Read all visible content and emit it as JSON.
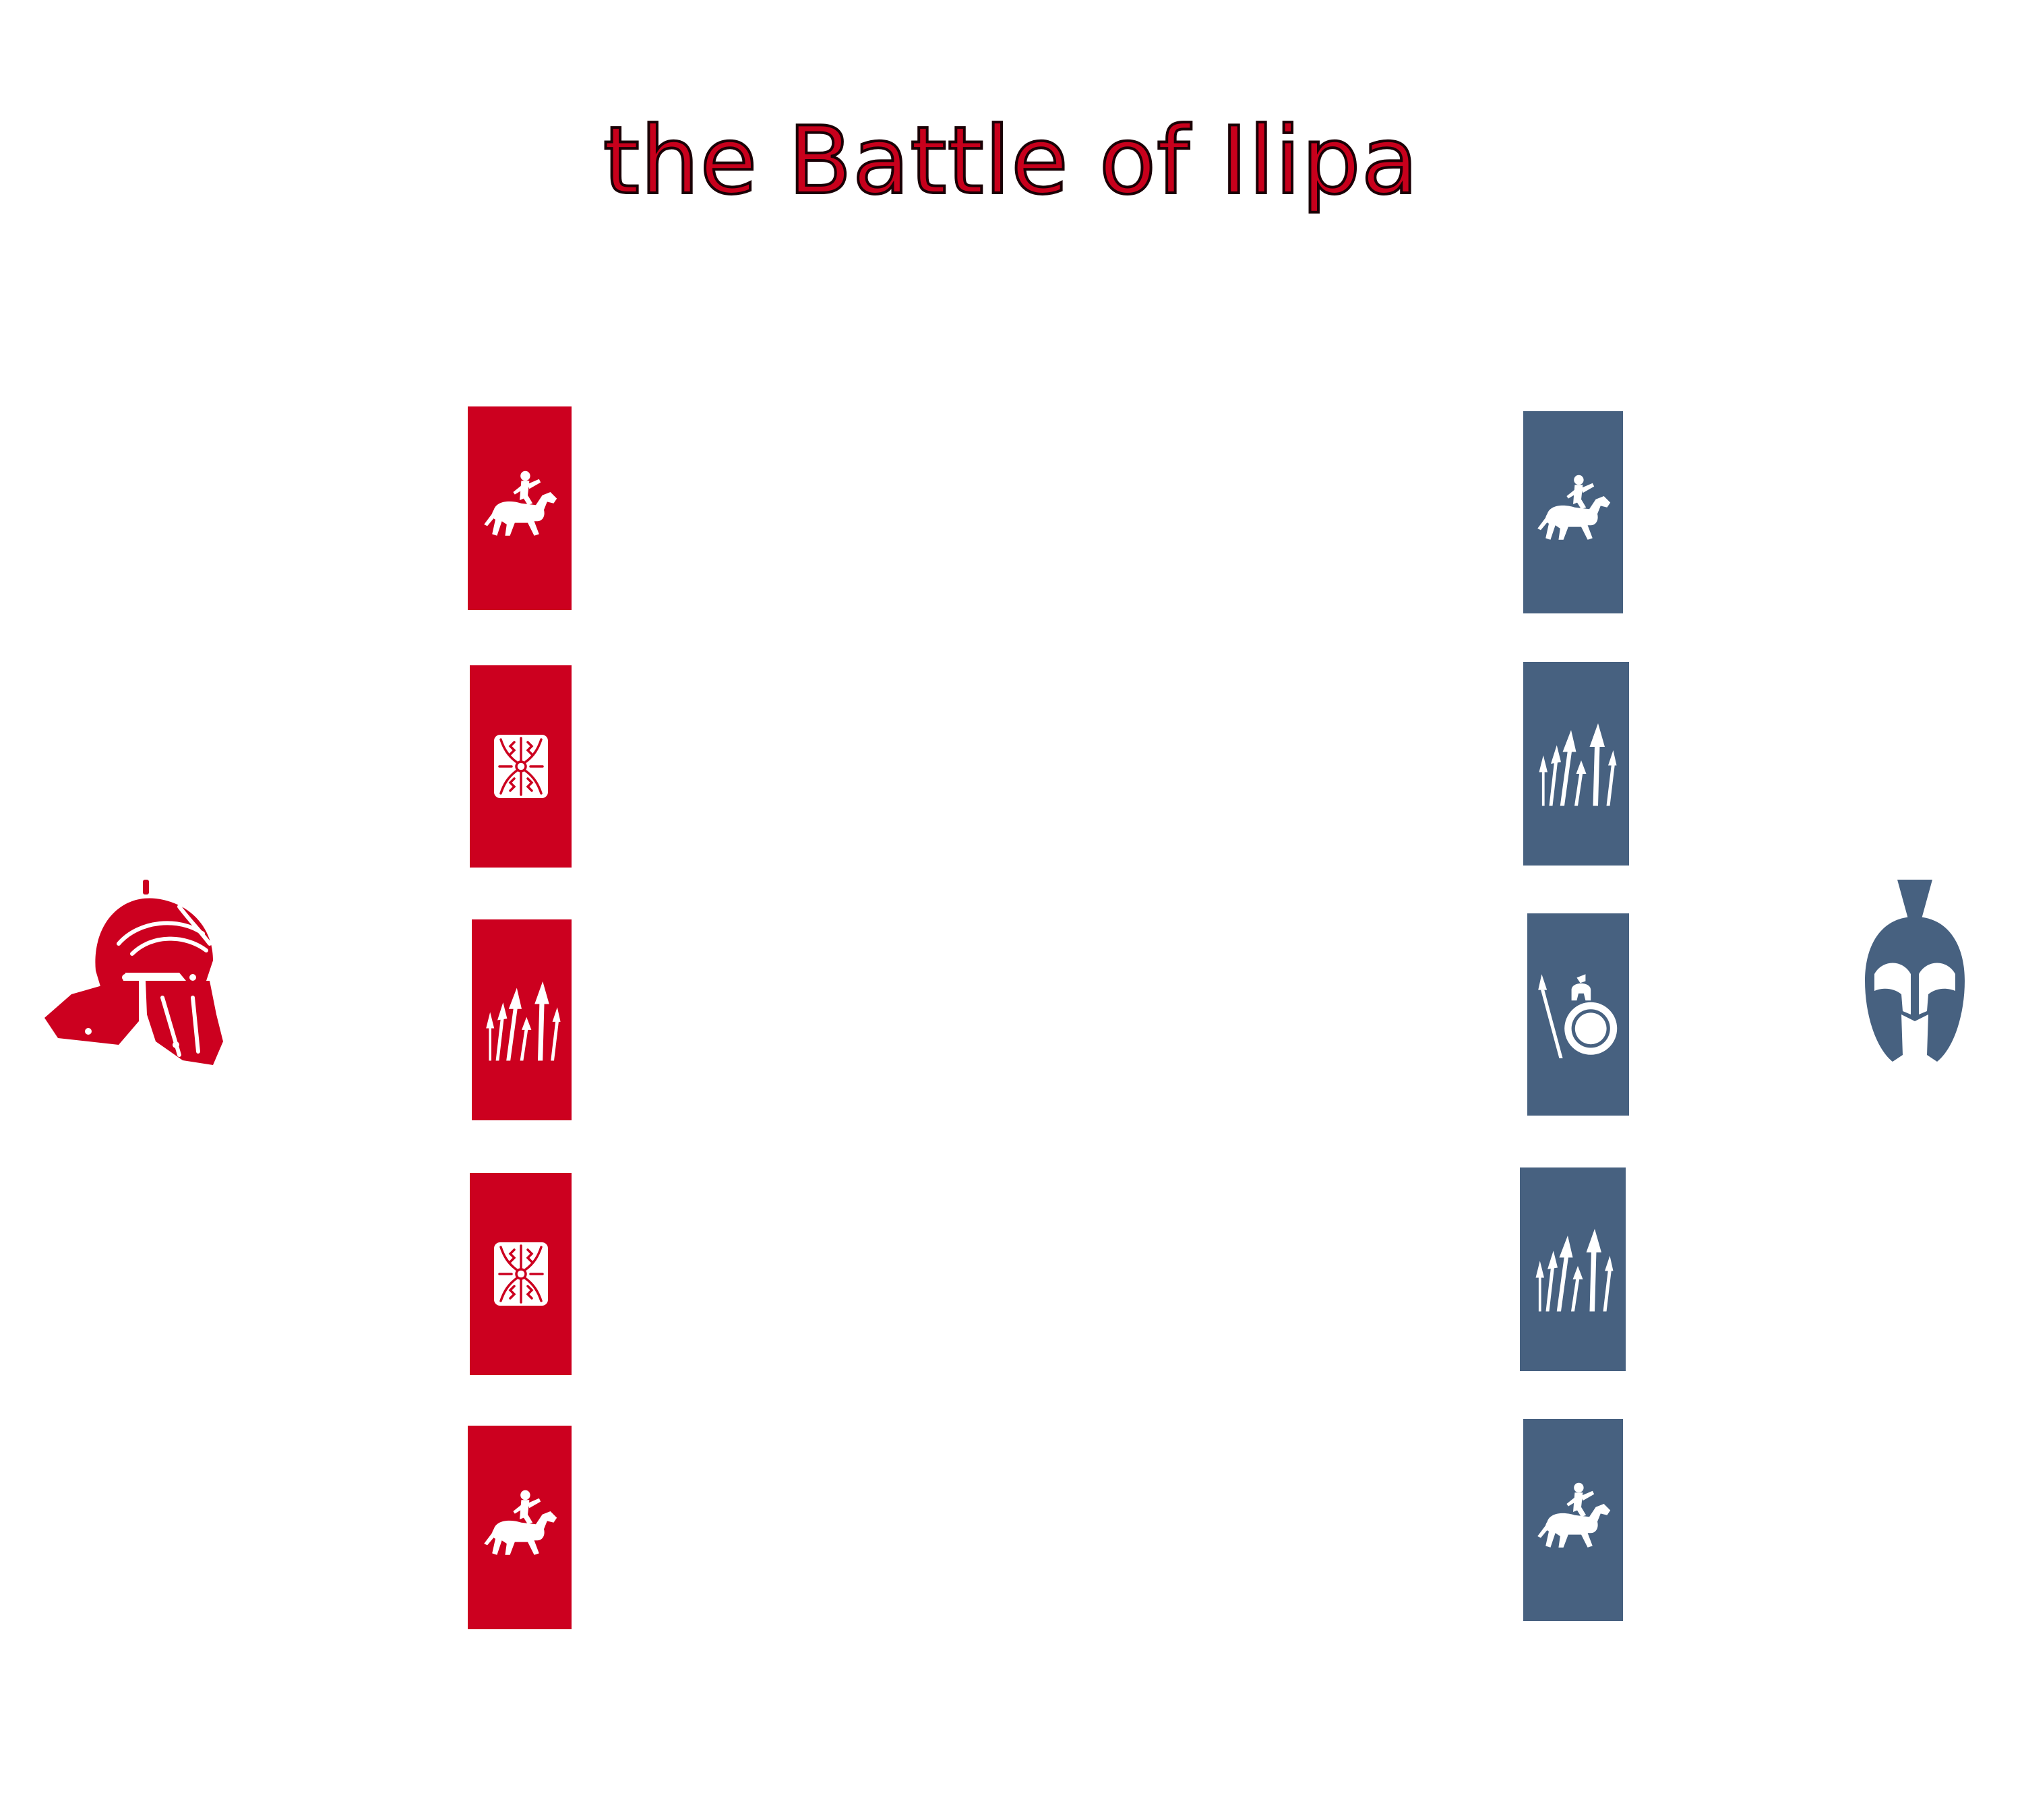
{
  "title": "the Battle of Ilipa",
  "colors": {
    "roman": "#cc001f",
    "carthaginian": "#476180",
    "icon": "#ffffff",
    "title_fill": "#c8001c",
    "title_outline": "#1a0005"
  },
  "sides": {
    "left": {
      "faction_icon": "roman-helmet-icon",
      "units": [
        {
          "type": "cavalry",
          "icon": "horseman-icon"
        },
        {
          "type": "legionary",
          "icon": "scutum-shield-icon"
        },
        {
          "type": "spearmen",
          "icon": "spears-icon"
        },
        {
          "type": "legionary",
          "icon": "scutum-shield-icon"
        },
        {
          "type": "cavalry",
          "icon": "horseman-icon"
        }
      ]
    },
    "right": {
      "faction_icon": "greek-helmet-icon",
      "units": [
        {
          "type": "cavalry",
          "icon": "horseman-icon"
        },
        {
          "type": "spearmen",
          "icon": "spears-icon"
        },
        {
          "type": "hoplite",
          "icon": "hoplite-icon"
        },
        {
          "type": "spearmen",
          "icon": "spears-icon"
        },
        {
          "type": "cavalry",
          "icon": "horseman-icon"
        }
      ]
    }
  }
}
